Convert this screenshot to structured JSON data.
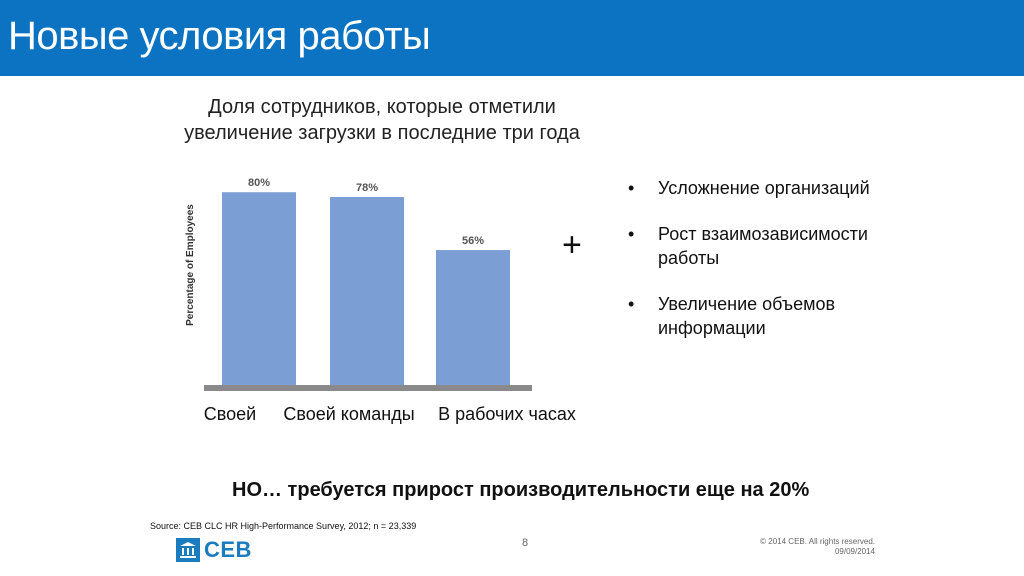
{
  "header": {
    "title": "Новые условия работы"
  },
  "chart_data": {
    "type": "bar",
    "title": "Доля сотрудников, которые отметили увеличение загрузки в последние три года",
    "ylabel": "Percentage of Employees",
    "categories": [
      "Своей",
      "Своей команды",
      "В рабочих часах"
    ],
    "values": [
      80,
      78,
      56
    ],
    "data_labels": [
      "80%",
      "78%",
      "56%"
    ],
    "bar_color": "#7b9fd4",
    "baseline_color": "#8a8a8a",
    "ylim": [
      0,
      100
    ]
  },
  "slide": {
    "plus": "+",
    "bullets": [
      "Усложнение организаций",
      "Рост взаимозависимости работы",
      "Увеличение объемов информации"
    ],
    "bottom_note": "НО… требуется прирост производительности еще на 20%",
    "source": "Source: CEB CLC HR High-Performance Survey, 2012; n = 23,339",
    "page_number": "8",
    "logo_text": "CEB",
    "copyright_line1": "© 2014 CEB. All rights reserved.",
    "copyright_line2": "09/09/2014"
  },
  "colors": {
    "header_bg": "#0b73c2",
    "accent": "#1a7bbf"
  }
}
